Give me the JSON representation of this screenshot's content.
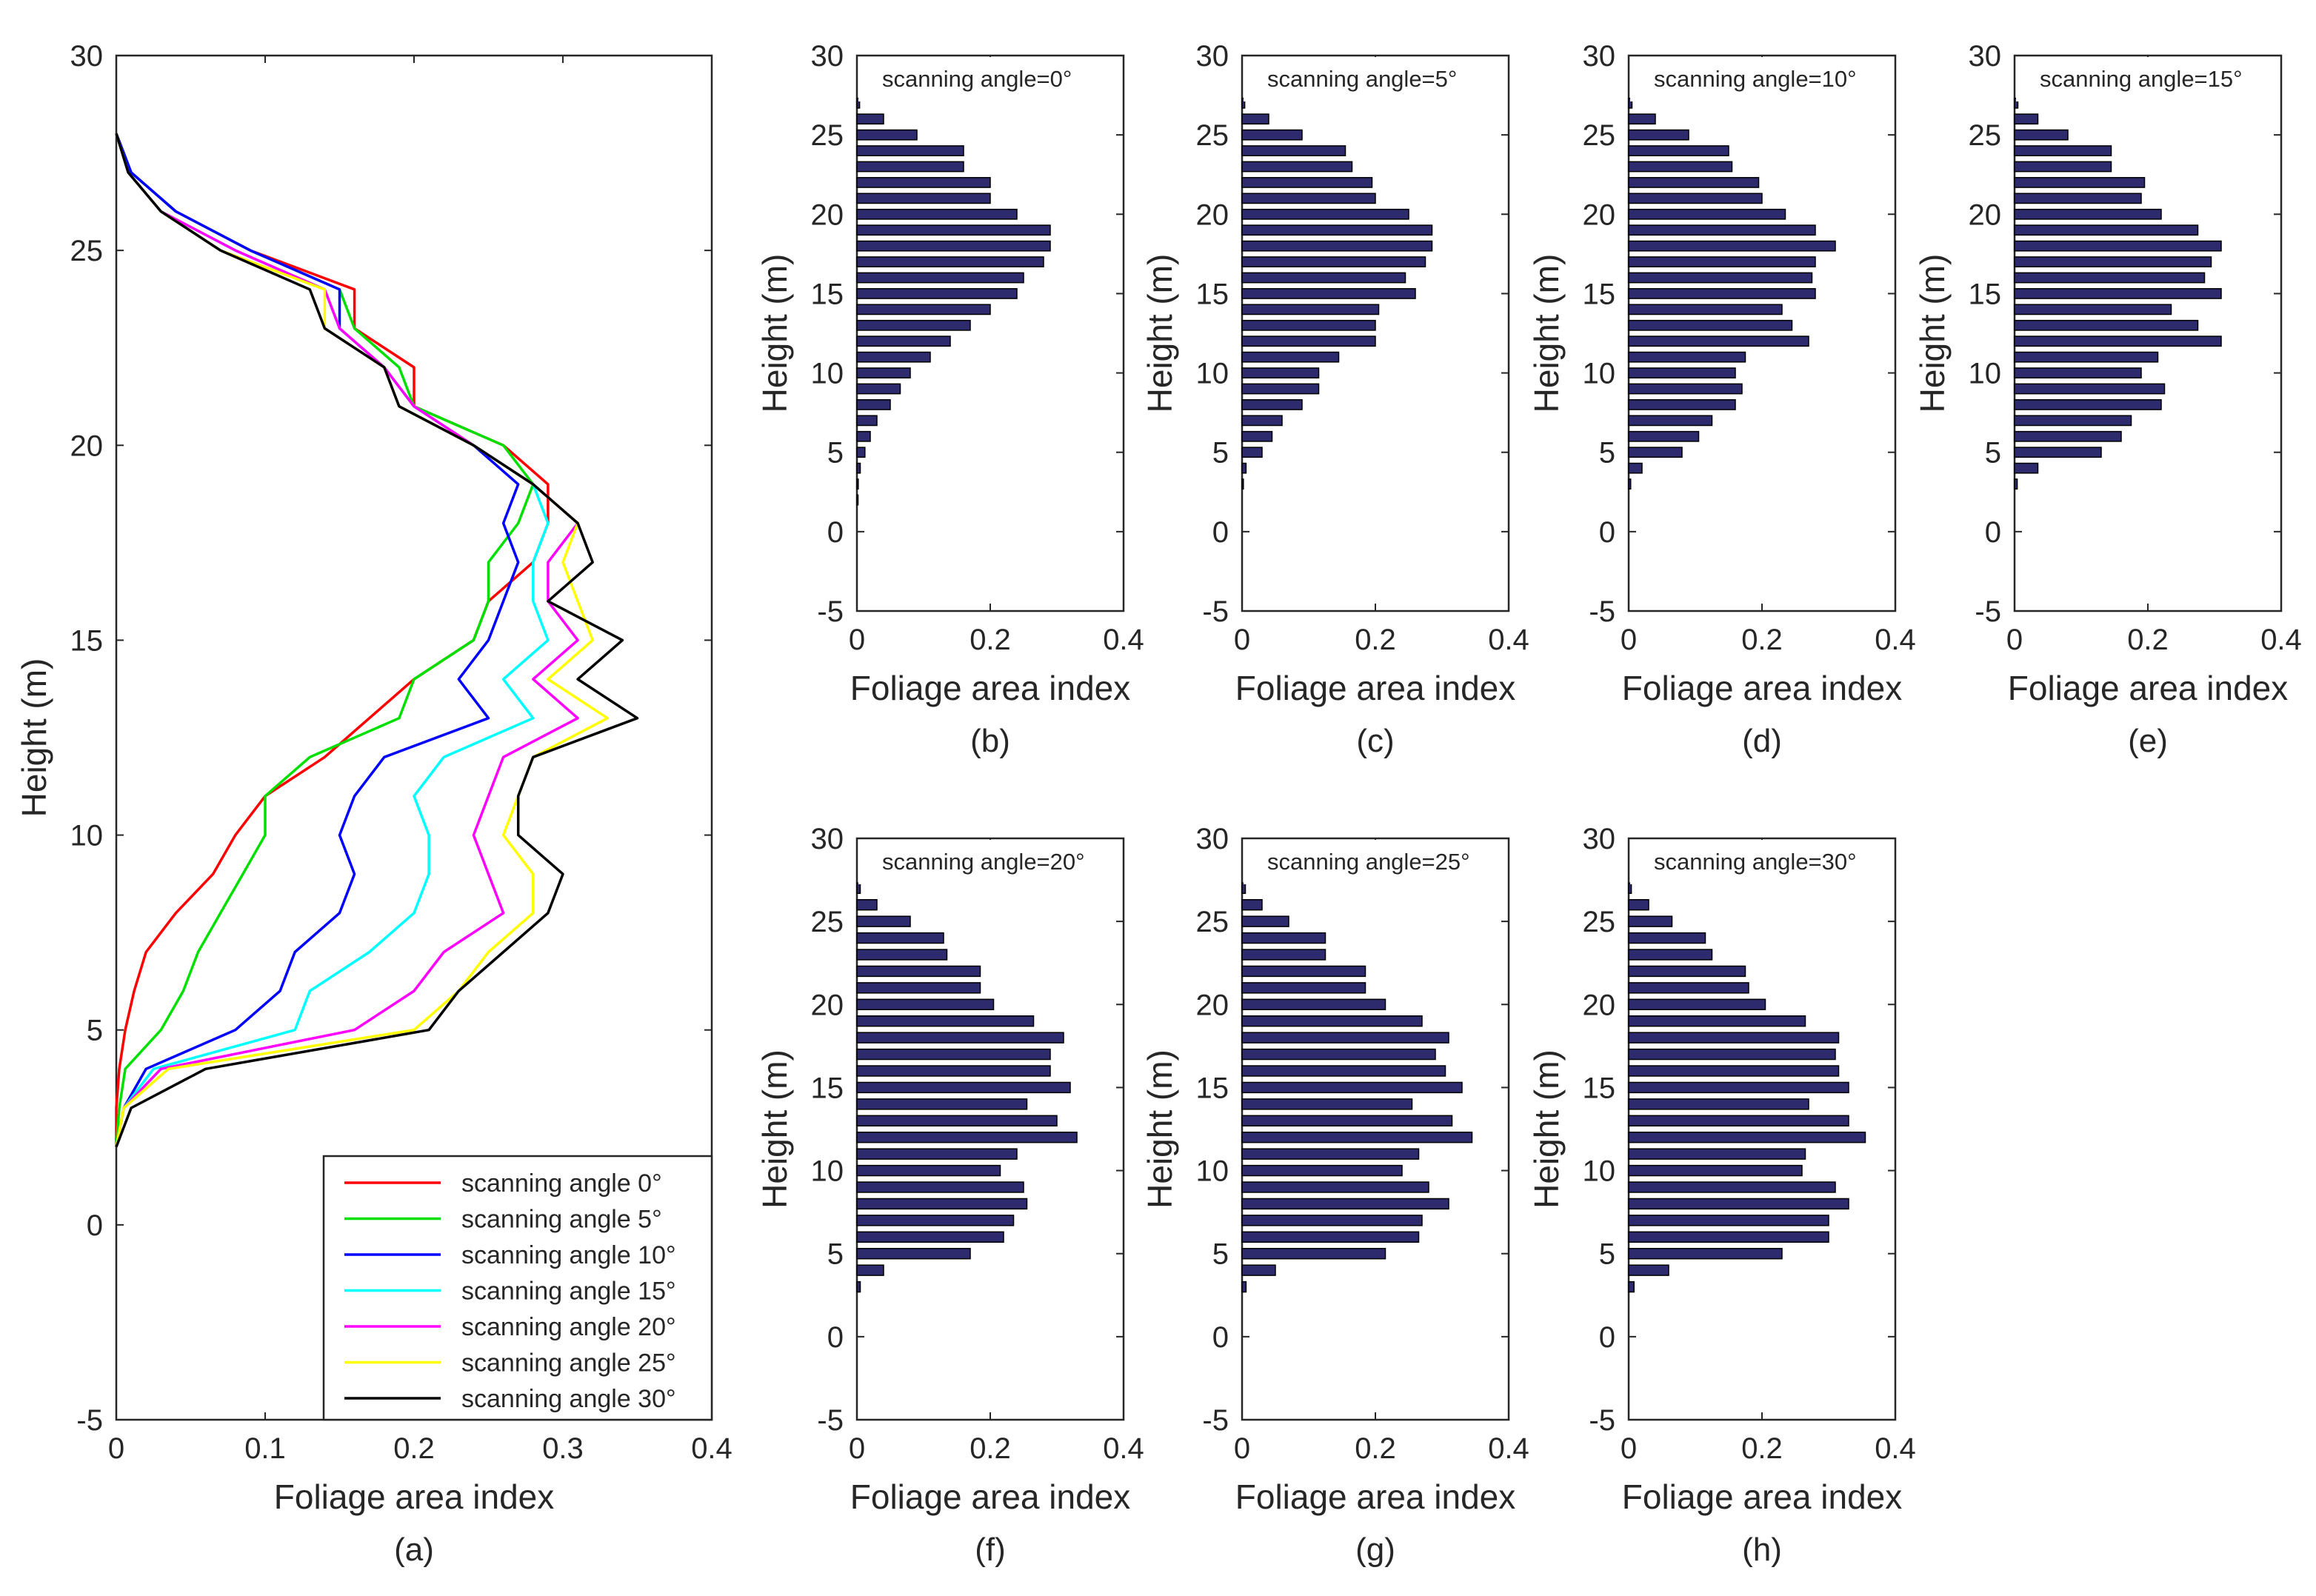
{
  "figure": {
    "common": {
      "xlabel": "Foliage area index",
      "ylabel": "Height (m)",
      "xlim": [
        0,
        0.4
      ],
      "ylim": [
        -5,
        30
      ],
      "xticks": [
        "0",
        "0.1",
        "0.2",
        "0.3",
        "0.4"
      ],
      "xticks_small": [
        "0",
        "0.2",
        "0.4"
      ],
      "yticks": [
        "-5",
        "0",
        "5",
        "10",
        "15",
        "20",
        "25",
        "30"
      ]
    }
  },
  "chart_data": [
    {
      "type": "line",
      "panel": "(a)",
      "xlabel": "Foliage area index",
      "ylabel": "Height (m)",
      "xlim": [
        0,
        0.4
      ],
      "ylim": [
        -5,
        30
      ],
      "legend_position": "bottom-right",
      "y": [
        2,
        3,
        4,
        5,
        6,
        7,
        8,
        9,
        10,
        11,
        12,
        13,
        14,
        15,
        16,
        17,
        18,
        19,
        20,
        21,
        22,
        23,
        24,
        25,
        26,
        27,
        28
      ],
      "series": [
        {
          "name": "scanning angle 0°",
          "color": "#ff0000",
          "x": [
            0,
            0,
            0.002,
            0.006,
            0.012,
            0.02,
            0.04,
            0.065,
            0.08,
            0.1,
            0.14,
            0.17,
            0.2,
            0.24,
            0.25,
            0.28,
            0.29,
            0.29,
            0.26,
            0.2,
            0.2,
            0.16,
            0.16,
            0.09,
            0.04,
            0.01,
            0
          ]
        },
        {
          "name": "scanning angle 5°",
          "color": "#00e000",
          "x": [
            0,
            0.002,
            0.006,
            0.03,
            0.045,
            0.055,
            0.07,
            0.085,
            0.1,
            0.1,
            0.13,
            0.19,
            0.2,
            0.24,
            0.25,
            0.25,
            0.27,
            0.28,
            0.26,
            0.2,
            0.19,
            0.16,
            0.15,
            0.09,
            0.04,
            0.01,
            0
          ]
        },
        {
          "name": "scanning angle 10°",
          "color": "#0000ff",
          "x": [
            0,
            0.005,
            0.02,
            0.08,
            0.11,
            0.12,
            0.15,
            0.16,
            0.15,
            0.16,
            0.18,
            0.25,
            0.23,
            0.25,
            0.26,
            0.27,
            0.26,
            0.27,
            0.24,
            0.2,
            0.18,
            0.15,
            0.15,
            0.09,
            0.04,
            0.01,
            0
          ]
        },
        {
          "name": "scanning angle 15°",
          "color": "#00ffff",
          "x": [
            0,
            0.005,
            0.025,
            0.12,
            0.13,
            0.17,
            0.2,
            0.21,
            0.21,
            0.2,
            0.22,
            0.28,
            0.26,
            0.29,
            0.28,
            0.28,
            0.29,
            0.28,
            0.24,
            0.2,
            0.18,
            0.15,
            0.14,
            0.08,
            0.03,
            0.008,
            0
          ]
        },
        {
          "name": "scanning angle 20°",
          "color": "#ff00ff",
          "x": [
            0,
            0.005,
            0.03,
            0.16,
            0.2,
            0.22,
            0.26,
            0.25,
            0.24,
            0.25,
            0.26,
            0.31,
            0.28,
            0.31,
            0.29,
            0.29,
            0.31,
            0.28,
            0.24,
            0.2,
            0.18,
            0.15,
            0.14,
            0.08,
            0.03,
            0.008,
            0
          ]
        },
        {
          "name": "scanning angle 25°",
          "color": "#ffff00",
          "x": [
            0,
            0.005,
            0.035,
            0.2,
            0.23,
            0.25,
            0.28,
            0.28,
            0.26,
            0.27,
            0.28,
            0.33,
            0.29,
            0.32,
            0.31,
            0.3,
            0.31,
            0.28,
            0.24,
            0.19,
            0.18,
            0.14,
            0.14,
            0.07,
            0.03,
            0.008,
            0
          ]
        },
        {
          "name": "scanning angle 30°",
          "color": "#000000",
          "x": [
            0,
            0.01,
            0.06,
            0.21,
            0.23,
            0.26,
            0.29,
            0.3,
            0.27,
            0.27,
            0.28,
            0.35,
            0.31,
            0.34,
            0.29,
            0.32,
            0.31,
            0.28,
            0.24,
            0.19,
            0.18,
            0.14,
            0.13,
            0.07,
            0.03,
            0.008,
            0
          ]
        }
      ],
      "legend": [
        "scanning angle 0°",
        "scanning angle 5°",
        "scanning angle 10°",
        "scanning angle 15°",
        "scanning angle 20°",
        "scanning angle 25°",
        "scanning angle 30°"
      ]
    },
    {
      "type": "bar",
      "orientation": "horizontal",
      "panel": "(b)",
      "annotation": "scanning angle=0°",
      "xlabel": "Foliage area index",
      "ylabel": "Height (m)",
      "xlim": [
        0,
        0.4
      ],
      "ylim": [
        -5,
        30
      ],
      "color": "#2e2a6e",
      "heights": [
        27,
        26,
        25,
        24,
        23,
        22,
        21,
        20,
        19,
        18,
        17,
        16,
        15,
        14,
        13,
        12,
        11,
        10,
        9,
        8,
        7,
        6,
        5,
        4,
        3,
        2
      ],
      "values": [
        0.004,
        0.04,
        0.09,
        0.16,
        0.16,
        0.2,
        0.2,
        0.24,
        0.29,
        0.29,
        0.28,
        0.25,
        0.24,
        0.2,
        0.17,
        0.14,
        0.11,
        0.08,
        0.065,
        0.05,
        0.03,
        0.02,
        0.012,
        0.005,
        0.002,
        0.001
      ]
    },
    {
      "type": "bar",
      "orientation": "horizontal",
      "panel": "(c)",
      "annotation": "scanning angle=5°",
      "xlabel": "Foliage area index",
      "ylabel": "Height (m)",
      "xlim": [
        0,
        0.4
      ],
      "ylim": [
        -5,
        30
      ],
      "color": "#2e2a6e",
      "heights": [
        27,
        26,
        25,
        24,
        23,
        22,
        21,
        20,
        19,
        18,
        17,
        16,
        15,
        14,
        13,
        12,
        11,
        10,
        9,
        8,
        7,
        6,
        5,
        4,
        3
      ],
      "values": [
        0.004,
        0.04,
        0.09,
        0.155,
        0.165,
        0.195,
        0.2,
        0.25,
        0.285,
        0.285,
        0.275,
        0.245,
        0.26,
        0.205,
        0.2,
        0.2,
        0.145,
        0.115,
        0.115,
        0.09,
        0.06,
        0.045,
        0.03,
        0.006,
        0.002
      ]
    },
    {
      "type": "bar",
      "orientation": "horizontal",
      "panel": "(d)",
      "annotation": "scanning angle=10°",
      "xlabel": "Foliage area index",
      "ylabel": "Height (m)",
      "xlim": [
        0,
        0.4
      ],
      "ylim": [
        -5,
        30
      ],
      "color": "#2e2a6e",
      "heights": [
        27,
        26,
        25,
        24,
        23,
        22,
        21,
        20,
        19,
        18,
        17,
        16,
        15,
        14,
        13,
        12,
        11,
        10,
        9,
        8,
        7,
        6,
        5,
        4,
        3
      ],
      "values": [
        0.005,
        0.04,
        0.09,
        0.15,
        0.155,
        0.195,
        0.2,
        0.235,
        0.28,
        0.31,
        0.28,
        0.275,
        0.28,
        0.23,
        0.245,
        0.27,
        0.175,
        0.16,
        0.17,
        0.16,
        0.125,
        0.105,
        0.08,
        0.02,
        0.003
      ]
    },
    {
      "type": "bar",
      "orientation": "horizontal",
      "panel": "(e)",
      "annotation": "scanning angle=15°",
      "xlabel": "Foliage area index",
      "ylabel": "Height (m)",
      "xlim": [
        0,
        0.4
      ],
      "ylim": [
        -5,
        30
      ],
      "color": "#2e2a6e",
      "heights": [
        27,
        26,
        25,
        24,
        23,
        22,
        21,
        20,
        19,
        18,
        17,
        16,
        15,
        14,
        13,
        12,
        11,
        10,
        9,
        8,
        7,
        6,
        5,
        4,
        3
      ],
      "values": [
        0.005,
        0.035,
        0.08,
        0.145,
        0.145,
        0.195,
        0.19,
        0.22,
        0.275,
        0.31,
        0.295,
        0.285,
        0.31,
        0.235,
        0.275,
        0.31,
        0.215,
        0.19,
        0.225,
        0.22,
        0.175,
        0.16,
        0.13,
        0.035,
        0.004
      ]
    },
    {
      "type": "bar",
      "orientation": "horizontal",
      "panel": "(f)",
      "annotation": "scanning angle=20°",
      "xlabel": "Foliage area index",
      "ylabel": "Height (m)",
      "xlim": [
        0,
        0.4
      ],
      "ylim": [
        -5,
        30
      ],
      "color": "#2e2a6e",
      "heights": [
        27,
        26,
        25,
        24,
        23,
        22,
        21,
        20,
        19,
        18,
        17,
        16,
        15,
        14,
        13,
        12,
        11,
        10,
        9,
        8,
        7,
        6,
        5,
        4,
        3
      ],
      "values": [
        0.005,
        0.03,
        0.08,
        0.13,
        0.135,
        0.185,
        0.185,
        0.205,
        0.265,
        0.31,
        0.29,
        0.29,
        0.32,
        0.255,
        0.3,
        0.33,
        0.24,
        0.215,
        0.25,
        0.255,
        0.235,
        0.22,
        0.17,
        0.04,
        0.005
      ]
    },
    {
      "type": "bar",
      "orientation": "horizontal",
      "panel": "(g)",
      "annotation": "scanning angle=25°",
      "xlabel": "Foliage area index",
      "ylabel": "Height (m)",
      "xlim": [
        0,
        0.4
      ],
      "ylim": [
        -5,
        30
      ],
      "color": "#2e2a6e",
      "heights": [
        27,
        26,
        25,
        24,
        23,
        22,
        21,
        20,
        19,
        18,
        17,
        16,
        15,
        14,
        13,
        12,
        11,
        10,
        9,
        8,
        7,
        6,
        5,
        4,
        3
      ],
      "values": [
        0.005,
        0.03,
        0.07,
        0.125,
        0.125,
        0.185,
        0.185,
        0.215,
        0.27,
        0.31,
        0.29,
        0.305,
        0.33,
        0.255,
        0.315,
        0.345,
        0.265,
        0.24,
        0.28,
        0.31,
        0.27,
        0.265,
        0.215,
        0.05,
        0.006
      ]
    },
    {
      "type": "bar",
      "orientation": "horizontal",
      "panel": "(h)",
      "annotation": "scanning angle=30°",
      "xlabel": "Foliage area index",
      "ylabel": "Height (m)",
      "xlim": [
        0,
        0.4
      ],
      "ylim": [
        -5,
        30
      ],
      "color": "#2e2a6e",
      "heights": [
        27,
        26,
        25,
        24,
        23,
        22,
        21,
        20,
        19,
        18,
        17,
        16,
        15,
        14,
        13,
        12,
        11,
        10,
        9,
        8,
        7,
        6,
        5,
        4,
        3
      ],
      "values": [
        0.004,
        0.03,
        0.065,
        0.115,
        0.125,
        0.175,
        0.18,
        0.205,
        0.265,
        0.315,
        0.31,
        0.315,
        0.33,
        0.27,
        0.33,
        0.355,
        0.265,
        0.26,
        0.31,
        0.33,
        0.3,
        0.3,
        0.23,
        0.06,
        0.008
      ]
    }
  ]
}
